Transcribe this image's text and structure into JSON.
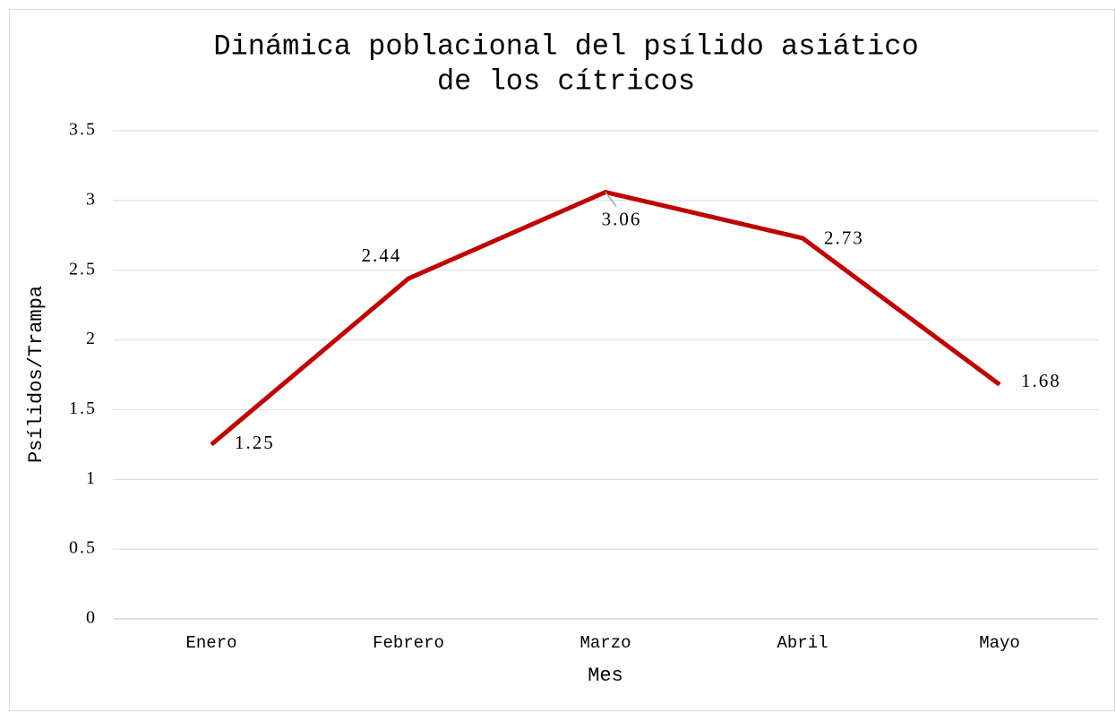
{
  "chart_data": {
    "type": "line",
    "title": [
      "Dinámica poblacional del psílido asiático",
      "de los cítricos"
    ],
    "x_label": "Mes",
    "y_label": "Psílidos/Trampa",
    "categories": [
      "Enero",
      "Febrero",
      "Marzo",
      "Abril",
      "Mayo"
    ],
    "series": [
      {
        "name": "Psílidos/Trampa",
        "color": "#c00000",
        "values": [
          1.25,
          2.44,
          3.06,
          2.73,
          1.68
        ]
      }
    ],
    "ylim": [
      0,
      3.5
    ],
    "yticks": [
      0,
      0.5,
      1,
      1.5,
      2,
      2.5,
      3,
      3.5
    ],
    "grid": true
  }
}
